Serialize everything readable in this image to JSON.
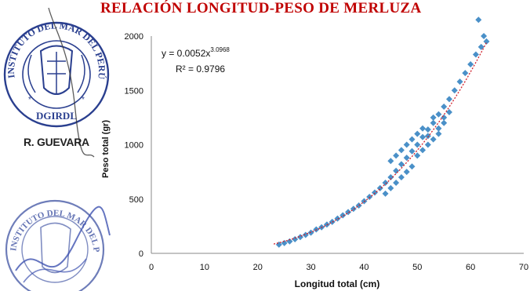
{
  "chart_data": {
    "type": "scatter",
    "title": "RELACIÓN LONGITUD-PESO DE MERLUZA",
    "xlabel": "Longitud total (cm)",
    "ylabel": "Peso total (gr)",
    "xlim": [
      0,
      70
    ],
    "ylim": [
      0,
      2000
    ],
    "x_ticks": [
      "0",
      "10",
      "20",
      "30",
      "40",
      "50",
      "60",
      "70"
    ],
    "y_ticks": [
      "0",
      "500",
      "1000",
      "1500",
      "2000"
    ],
    "series": [
      {
        "points": [
          [
            24,
            80
          ],
          [
            25,
            95
          ],
          [
            26,
            110
          ],
          [
            27,
            130
          ],
          [
            28,
            150
          ],
          [
            29,
            170
          ],
          [
            30,
            190
          ],
          [
            31,
            220
          ],
          [
            32,
            240
          ],
          [
            33,
            265
          ],
          [
            34,
            290
          ],
          [
            35,
            320
          ],
          [
            36,
            350
          ],
          [
            37,
            380
          ],
          [
            38,
            410
          ],
          [
            39,
            440
          ],
          [
            40,
            480
          ],
          [
            41,
            520
          ],
          [
            42,
            560
          ],
          [
            43,
            600
          ],
          [
            44,
            650
          ],
          [
            45,
            700
          ],
          [
            46,
            760
          ],
          [
            47,
            820
          ],
          [
            48,
            880
          ],
          [
            49,
            940
          ],
          [
            50,
            1000
          ],
          [
            51,
            1070
          ],
          [
            52,
            1140
          ],
          [
            53,
            1200
          ],
          [
            54,
            1280
          ],
          [
            55,
            1350
          ],
          [
            56,
            1420
          ],
          [
            57,
            1500
          ],
          [
            58,
            1580
          ],
          [
            59,
            1660
          ],
          [
            60,
            1740
          ],
          [
            61,
            1830
          ],
          [
            62,
            1900
          ],
          [
            63,
            1950
          ],
          [
            45,
            850
          ],
          [
            46,
            900
          ],
          [
            47,
            950
          ],
          [
            48,
            1000
          ],
          [
            49,
            1050
          ],
          [
            50,
            1100
          ],
          [
            51,
            1150
          ],
          [
            52,
            1080
          ],
          [
            53,
            1250
          ],
          [
            54,
            1100
          ],
          [
            55,
            1200
          ],
          [
            56,
            1300
          ],
          [
            44,
            550
          ],
          [
            45,
            600
          ],
          [
            46,
            650
          ],
          [
            47,
            700
          ],
          [
            48,
            750
          ],
          [
            49,
            800
          ],
          [
            50,
            900
          ],
          [
            51,
            950
          ],
          [
            52,
            1000
          ],
          [
            53,
            1050
          ],
          [
            54,
            1150
          ],
          [
            55,
            1250
          ],
          [
            61.5,
            2150
          ],
          [
            62.5,
            2000
          ]
        ]
      }
    ],
    "trendline": {
      "equation": "y = 0.0052x",
      "exponent": "3.0968",
      "r_squared": "R² = 0.9796",
      "a": 0.0052,
      "b": 3.0968,
      "x_range": [
        23,
        63
      ]
    },
    "grid": false,
    "marker_color": "#4a90c8",
    "trendline_color": "#d0202c"
  },
  "annotations": {
    "seal_top_text": "INSTITUTO DEL MAR DEL PERÚ",
    "seal_bottom_text": "DGIRDL",
    "signature_label": "R. GUEVARA"
  }
}
